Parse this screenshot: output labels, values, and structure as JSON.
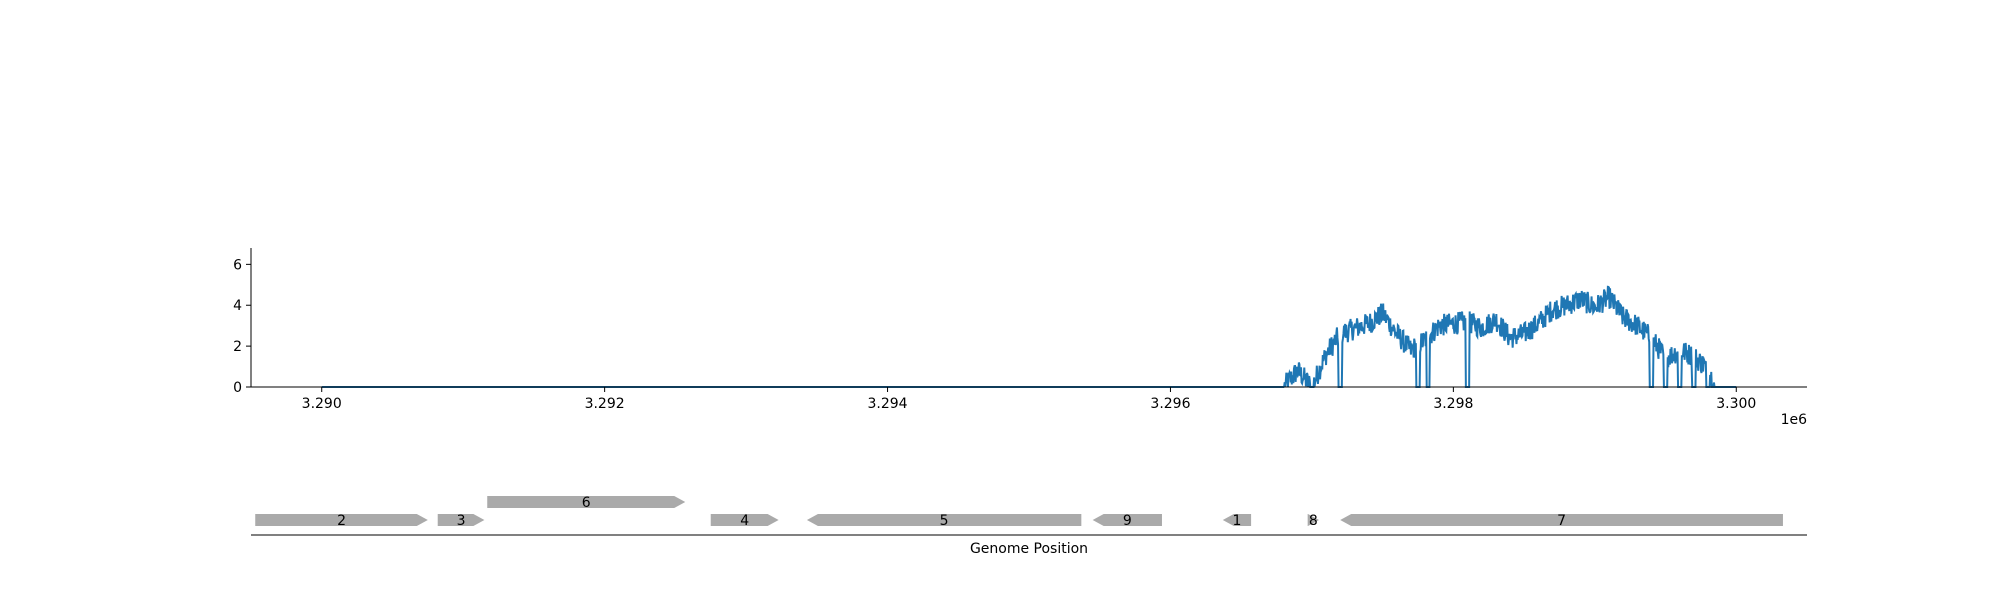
{
  "chart_data": {
    "type": "line",
    "x_offset_label": "1e6",
    "xlabel": "Genome Position",
    "ylabel": "",
    "title": "",
    "xlim": [
      3.2895,
      3.3005
    ],
    "ylim": [
      0,
      6.8
    ],
    "x_ticks": [
      3.29,
      3.292,
      3.294,
      3.296,
      3.298,
      3.3
    ],
    "x_tick_labels": [
      "3.290",
      "3.292",
      "3.294",
      "3.296",
      "3.298",
      "3.300"
    ],
    "y_ticks": [
      0,
      2,
      4,
      6
    ],
    "y_tick_labels": [
      "0",
      "2",
      "4",
      "6"
    ],
    "grid": false,
    "line_color": "#1f77b4",
    "coverage_profile": [
      {
        "x": 3.29,
        "y": 0
      },
      {
        "x": 3.2968,
        "y": 0
      },
      {
        "x": 3.2969,
        "y": 0.8
      },
      {
        "x": 3.297,
        "y": 0
      },
      {
        "x": 3.2971,
        "y": 1.6
      },
      {
        "x": 3.2972,
        "y": 2.6
      },
      {
        "x": 3.2974,
        "y": 3.1
      },
      {
        "x": 3.2975,
        "y": 3.6
      },
      {
        "x": 3.2976,
        "y": 2.6
      },
      {
        "x": 3.2977,
        "y": 1.8
      },
      {
        "x": 3.2978,
        "y": 2.3
      },
      {
        "x": 3.2979,
        "y": 3.0
      },
      {
        "x": 3.298,
        "y": 3.1
      },
      {
        "x": 3.2981,
        "y": 3.2
      },
      {
        "x": 3.2982,
        "y": 2.9
      },
      {
        "x": 3.2983,
        "y": 3.3
      },
      {
        "x": 3.2984,
        "y": 2.4
      },
      {
        "x": 3.2985,
        "y": 2.6
      },
      {
        "x": 3.2986,
        "y": 3.1
      },
      {
        "x": 3.2987,
        "y": 3.8
      },
      {
        "x": 3.2988,
        "y": 4.0
      },
      {
        "x": 3.2989,
        "y": 4.3
      },
      {
        "x": 3.299,
        "y": 3.9
      },
      {
        "x": 3.2991,
        "y": 4.4
      },
      {
        "x": 3.2992,
        "y": 3.4
      },
      {
        "x": 3.2993,
        "y": 3.0
      },
      {
        "x": 3.2994,
        "y": 2.4
      },
      {
        "x": 3.2995,
        "y": 1.4
      },
      {
        "x": 3.2996,
        "y": 1.8
      },
      {
        "x": 3.2997,
        "y": 1.5
      },
      {
        "x": 3.2998,
        "y": 0.9
      },
      {
        "x": 3.29985,
        "y": 0
      },
      {
        "x": 3.3,
        "y": 0
      }
    ],
    "zero_dips": [
      3.297,
      3.2972,
      3.29775,
      3.29782,
      3.2981,
      3.2994,
      3.2995,
      3.2996,
      3.2997,
      3.2998
    ],
    "genes": [
      {
        "label": "2",
        "start": 3.28953,
        "end": 3.29075,
        "strand": "+",
        "track": 0
      },
      {
        "label": "3",
        "start": 3.29082,
        "end": 3.29115,
        "strand": "+",
        "track": 0
      },
      {
        "label": "6",
        "start": 3.29117,
        "end": 3.29257,
        "strand": "+",
        "track": 1
      },
      {
        "label": "4",
        "start": 3.29275,
        "end": 3.29323,
        "strand": "+",
        "track": 0
      },
      {
        "label": "5",
        "start": 3.29343,
        "end": 3.29537,
        "strand": "-",
        "track": 0
      },
      {
        "label": "9",
        "start": 3.29545,
        "end": 3.29594,
        "strand": "-",
        "track": 0
      },
      {
        "label": "1",
        "start": 3.29637,
        "end": 3.29657,
        "strand": "-",
        "track": 0
      },
      {
        "label": "8",
        "start": 3.29697,
        "end": 3.29705,
        "strand": "+",
        "track": 0
      },
      {
        "label": "7",
        "start": 3.2972,
        "end": 3.30033,
        "strand": "-",
        "track": 0
      }
    ],
    "gene_color": "#aaaaaa"
  }
}
